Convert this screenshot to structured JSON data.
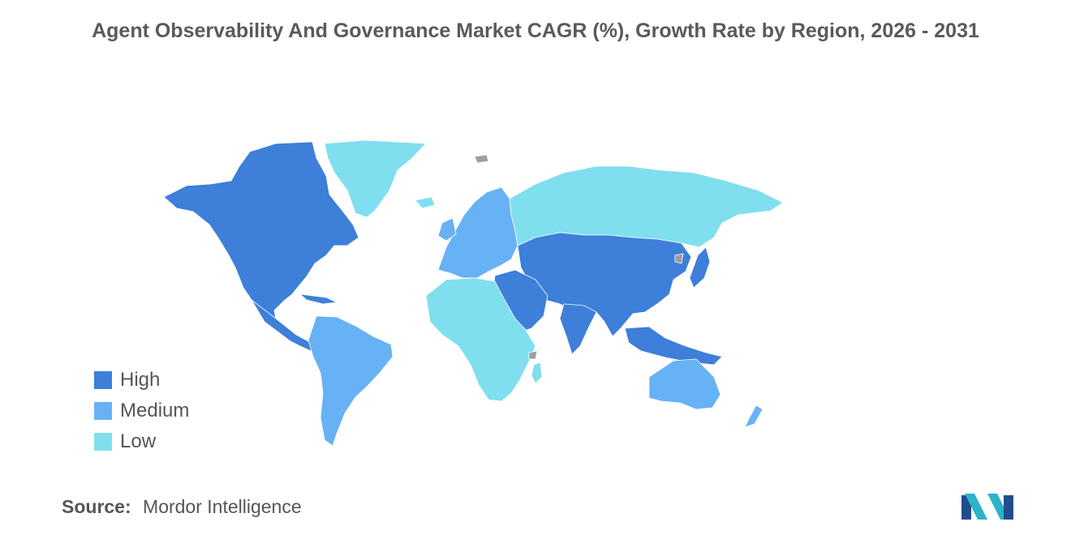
{
  "title": "Agent Observability And Governance Market CAGR (%), Growth Rate by Region, 2026 - 2031",
  "legend": [
    {
      "label": "High",
      "color": "#3d7fd9"
    },
    {
      "label": "Medium",
      "color": "#67b1f5"
    },
    {
      "label": "Low",
      "color": "#7fdfee"
    }
  ],
  "no_data_color": "#9e9e9e",
  "source": {
    "label": "Source:",
    "value": "Mordor Intelligence"
  },
  "logo_colors": [
    "#1f4e8c",
    "#2ab3c9"
  ]
}
